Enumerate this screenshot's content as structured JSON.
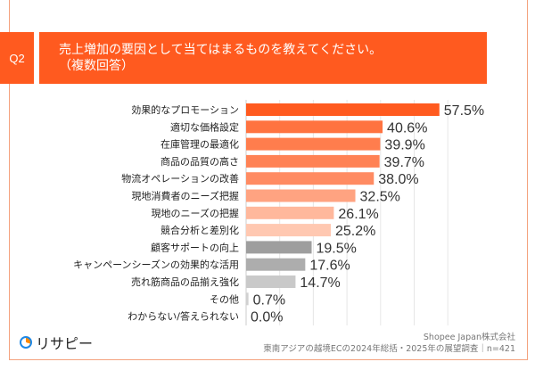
{
  "question": {
    "label": "Q2",
    "line1": "売上増加の要因として当てはまるものを教えてください。",
    "line2": "（複数回答）"
  },
  "chart_data": {
    "type": "bar",
    "orientation": "horizontal",
    "categories": [
      "効果的なプロモーション",
      "適切な価格設定",
      "在庫管理の最適化",
      "商品の品質の高さ",
      "物流オペレーションの改善",
      "現地消費者のニーズ把握",
      "現地のニーズの把握",
      "競合分析と差別化",
      "顧客サポートの向上",
      "キャンペーンシーズンの効果的な活用",
      "売れ筋商品の品揃え強化",
      "その他",
      "わからない/答えられない"
    ],
    "values": [
      57.5,
      40.6,
      39.9,
      39.7,
      38.0,
      32.5,
      26.1,
      25.2,
      19.5,
      17.6,
      14.7,
      0.7,
      0.0
    ],
    "value_labels": [
      "57.5%",
      "40.6%",
      "39.9%",
      "39.7%",
      "38.0%",
      "32.5%",
      "26.1%",
      "25.2%",
      "19.5%",
      "17.6%",
      "14.7%",
      "0.7%",
      "0.0%"
    ],
    "colors": [
      "#ff5a1f",
      "#ff7340",
      "#ff7d4d",
      "#ff8255",
      "#ff8b62",
      "#ffa381",
      "#ffb89c",
      "#ffc8b1",
      "#9e9e9e",
      "#adadad",
      "#c9c9c9",
      "#d0d0d0",
      "#d0d0d0"
    ],
    "xlim": [
      0,
      60
    ],
    "grid": true
  },
  "footer": {
    "logo": "リサピー",
    "company": "Shopee Japan株式会社",
    "survey": "東南アジアの越境ECの2024年総括・2025年の展望調査｜n=421"
  }
}
